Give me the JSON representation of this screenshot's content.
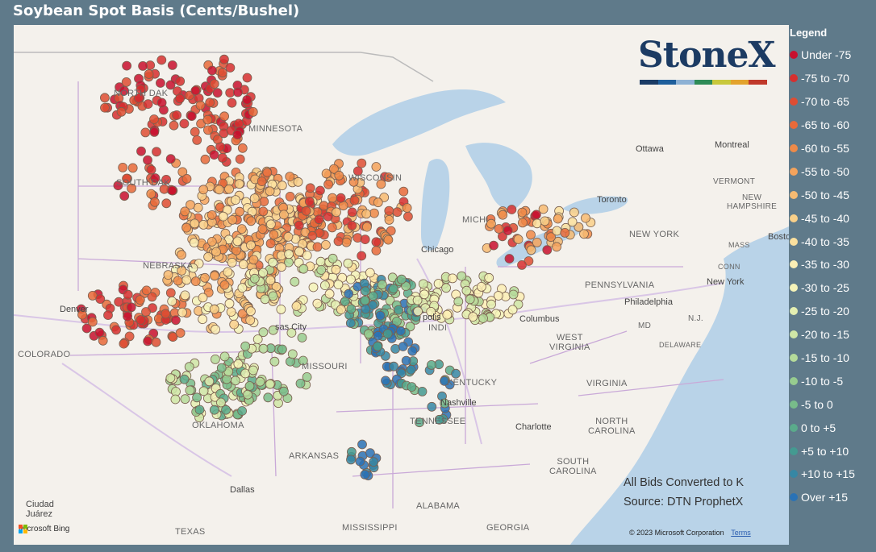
{
  "title": "Soybean Spot Basis (Cents/Bushel)",
  "logo": {
    "text": "StoneX",
    "trademark": "™",
    "bar_colors": [
      "#1b3c66",
      "#1e5f9c",
      "#8db1d4",
      "#2e8b57",
      "#c8c83c",
      "#e3a32d",
      "#c0392b"
    ]
  },
  "legend": {
    "title": "Legend",
    "items": [
      {
        "label": "Under -75",
        "color": "#c8102e"
      },
      {
        "label": "-75 to -70",
        "color": "#d62f2f"
      },
      {
        "label": "-70 to -65",
        "color": "#de4d33"
      },
      {
        "label": "-65 to -60",
        "color": "#e86a3a"
      },
      {
        "label": "-60 to -55",
        "color": "#ef8a48"
      },
      {
        "label": "-55 to -50",
        "color": "#f4a35c"
      },
      {
        "label": "-50 to -45",
        "color": "#f7bb72"
      },
      {
        "label": "-45 to -40",
        "color": "#f9d089"
      },
      {
        "label": "-40 to -35",
        "color": "#fbe09e"
      },
      {
        "label": "-35 to -30",
        "color": "#fcefb5"
      },
      {
        "label": "-30 to -25",
        "color": "#f5f3b8"
      },
      {
        "label": "-25 to -20",
        "color": "#e4efb1"
      },
      {
        "label": "-20 to -15",
        "color": "#cfe6a6"
      },
      {
        "label": "-15 to -10",
        "color": "#b5db9a"
      },
      {
        "label": "-10 to -5",
        "color": "#97cc8f"
      },
      {
        "label": "-5 to 0",
        "color": "#78bc8a"
      },
      {
        "label": "0 to +5",
        "color": "#5aab8b"
      },
      {
        "label": "+5 to +10",
        "color": "#449a91"
      },
      {
        "label": "+10 to +15",
        "color": "#3687a4"
      },
      {
        "label": "Over +15",
        "color": "#2a72b5"
      }
    ]
  },
  "labels": {
    "north_dakota": "NORTH DAK",
    "south_dakota": "SOUTH DAK",
    "nebraska": "NEBRASKA",
    "minnesota": "MINNESOTA",
    "wisconsin": "WISCONSIN",
    "colorado": "COLORADO",
    "missouri": "MISSOURI",
    "kentucky": "KENTUCKY",
    "tennessee": "TENNESSEE",
    "arkansas": "ARKANSAS",
    "oklahoma": "OKLAHOMA",
    "texas": "TEXAS",
    "mississippi": "MISSISSIPPI",
    "alabama": "ALABAMA",
    "georgia": "GEORGIA",
    "south_carolina": "SOUTH\nCAROLINA",
    "north_carolina": "NORTH\nCAROLINA",
    "virginia": "VIRGINIA",
    "west_virginia": "WEST\nVIRGINIA",
    "pennsylvania": "PENNSYLVANIA",
    "new_york": "NEW YORK",
    "vermont": "VERMONT",
    "new_hampshire": "NEW\nHAMPSHIRE",
    "mass": "MASS",
    "conn": "CONN",
    "delaware": "DELAWARE",
    "md": "MD",
    "nj": "N.J.",
    "michigan": "MICHI",
    "indiana": "INDI",
    "ottawa": "Ottawa",
    "montreal": "Montreal",
    "toronto": "Toronto",
    "boston": "Bosto",
    "new_york_city": "New York",
    "philadelphia": "Philadelphia",
    "columbus": "Columbus",
    "chicago": "Chicago",
    "nashville": "Nashville",
    "charlotte": "Charlotte",
    "denver": "Denver",
    "dallas": "Dallas",
    "ciudad_juarez": "Ciudad\nJuárez",
    "indianapolis": "polis",
    "kansas_city": "sas City"
  },
  "notes": {
    "line1": "All Bids Converted to K",
    "line2": "Source: DTN ProphetX"
  },
  "footer": {
    "copyright": "© 2023 Microsoft Corporation",
    "terms": "Terms",
    "bing": "Microsoft Bing"
  },
  "colors": {
    "background": "#5f7a8a",
    "map_land": "#f4f1ec",
    "water": "#b9d3e8",
    "border": "#c9a9d8"
  }
}
